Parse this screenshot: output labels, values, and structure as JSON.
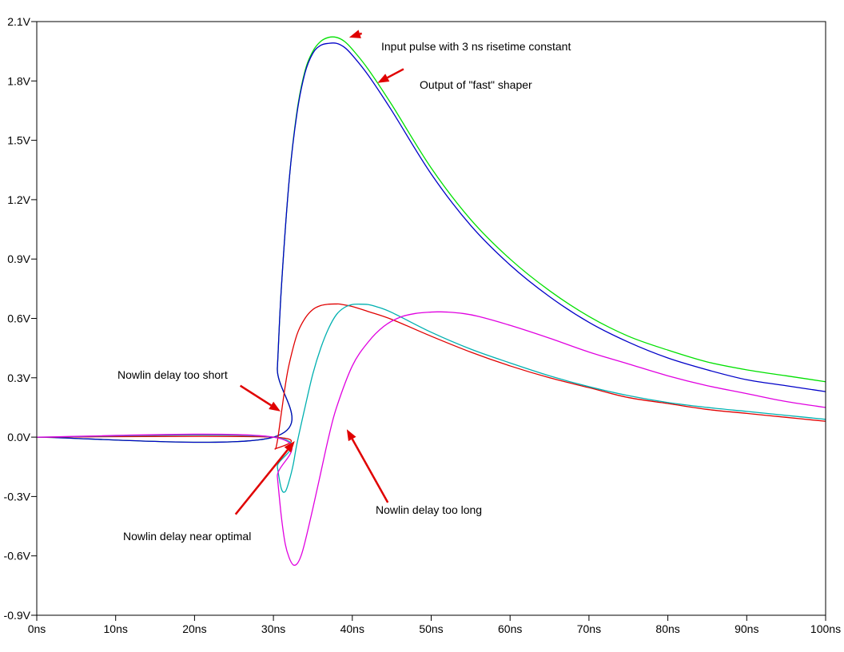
{
  "chart_data": {
    "type": "line",
    "title": "",
    "xlabel": "",
    "ylabel": "",
    "xlim": [
      0,
      100
    ],
    "ylim": [
      -0.9,
      2.1
    ],
    "grid": false,
    "x_ticks": [
      0,
      10,
      20,
      30,
      40,
      50,
      60,
      70,
      80,
      90,
      100
    ],
    "x_tick_labels": [
      "0ns",
      "10ns",
      "20ns",
      "30ns",
      "40ns",
      "50ns",
      "60ns",
      "70ns",
      "80ns",
      "90ns",
      "100ns"
    ],
    "y_ticks": [
      2.1,
      1.8,
      1.5,
      1.2,
      0.9,
      0.6,
      0.3,
      0.0,
      -0.3,
      -0.6,
      -0.9
    ],
    "y_tick_labels": [
      "2.1V",
      "1.8V",
      "1.5V",
      "1.2V",
      "0.9V",
      "0.6V",
      "0.3V",
      "0.0V",
      "-0.3V",
      "-0.6V",
      "-0.9V"
    ],
    "series": [
      {
        "color": "#00e000",
        "x": [
          0,
          30,
          30.5,
          31,
          32,
          33,
          34,
          35,
          36,
          37,
          38,
          39,
          40,
          42,
          45,
          50,
          55,
          60,
          65,
          70,
          75,
          80,
          85,
          90,
          95,
          100
        ],
        "y": [
          0,
          0,
          0.35,
          0.75,
          1.3,
          1.65,
          1.85,
          1.95,
          2.0,
          2.02,
          2.02,
          2.0,
          1.96,
          1.86,
          1.68,
          1.36,
          1.1,
          0.9,
          0.74,
          0.61,
          0.51,
          0.44,
          0.38,
          0.34,
          0.31,
          0.28
        ]
      },
      {
        "color": "#0000c8",
        "x": [
          0,
          30,
          30.5,
          31,
          32,
          33,
          34,
          35,
          36,
          37,
          38,
          39,
          40,
          42,
          45,
          50,
          55,
          60,
          65,
          70,
          75,
          80,
          85,
          90,
          95,
          100
        ],
        "y": [
          0,
          0,
          0.35,
          0.75,
          1.3,
          1.64,
          1.84,
          1.94,
          1.98,
          1.99,
          1.99,
          1.97,
          1.93,
          1.83,
          1.65,
          1.33,
          1.07,
          0.87,
          0.71,
          0.58,
          0.48,
          0.4,
          0.34,
          0.29,
          0.26,
          0.23
        ]
      },
      {
        "color": "#e00000",
        "x": [
          0,
          30,
          30.2,
          30.5,
          31,
          31.5,
          32,
          33,
          34,
          35,
          36,
          37,
          38,
          38.5,
          40,
          42,
          45,
          50,
          55,
          60,
          65,
          70,
          75,
          80,
          85,
          90,
          95,
          100
        ],
        "y": [
          0,
          0,
          -0.06,
          -0.02,
          0.12,
          0.26,
          0.37,
          0.52,
          0.6,
          0.645,
          0.665,
          0.672,
          0.673,
          0.672,
          0.66,
          0.635,
          0.595,
          0.51,
          0.43,
          0.36,
          0.3,
          0.25,
          0.2,
          0.17,
          0.14,
          0.12,
          0.1,
          0.08
        ]
      },
      {
        "color": "#00b0b0",
        "x": [
          0,
          30,
          30.5,
          31,
          31.5,
          32,
          32.5,
          33,
          34,
          35,
          36,
          37,
          38,
          39,
          40,
          41,
          42,
          43,
          45,
          50,
          55,
          60,
          65,
          70,
          75,
          80,
          85,
          90,
          95,
          100
        ],
        "y": [
          0,
          0,
          -0.15,
          -0.26,
          -0.275,
          -0.22,
          -0.14,
          -0.03,
          0.15,
          0.32,
          0.45,
          0.55,
          0.62,
          0.655,
          0.67,
          0.672,
          0.67,
          0.66,
          0.63,
          0.53,
          0.445,
          0.375,
          0.31,
          0.255,
          0.21,
          0.175,
          0.15,
          0.13,
          0.11,
          0.09
        ]
      },
      {
        "color": "#e000e0",
        "x": [
          0,
          30,
          30.5,
          31,
          31.5,
          32,
          32.5,
          33,
          33.5,
          34,
          35,
          36,
          37,
          38,
          40,
          42,
          44,
          46,
          48,
          50,
          51,
          52,
          54,
          56,
          60,
          65,
          70,
          75,
          80,
          85,
          90,
          95,
          100
        ],
        "y": [
          0,
          0,
          -0.2,
          -0.4,
          -0.54,
          -0.61,
          -0.645,
          -0.64,
          -0.6,
          -0.53,
          -0.36,
          -0.18,
          0.0,
          0.15,
          0.36,
          0.48,
          0.56,
          0.605,
          0.625,
          0.632,
          0.633,
          0.632,
          0.625,
          0.61,
          0.565,
          0.5,
          0.43,
          0.37,
          0.31,
          0.26,
          0.22,
          0.18,
          0.15
        ]
      }
    ],
    "annotations": [
      {
        "text": "Input pulse with 3 ns risetime constant",
        "arrow_from": [
          41.2,
          2.04
        ],
        "arrow_to": [
          39.6,
          2.02
        ]
      },
      {
        "text": "Output of \"fast\" shaper",
        "arrow_from": [
          46.5,
          1.86
        ],
        "arrow_to": [
          43.2,
          1.79
        ]
      },
      {
        "text": "Nowlin delay too short",
        "arrow_from": [
          25.8,
          0.26
        ],
        "arrow_to": [
          30.9,
          0.13
        ]
      },
      {
        "text": "Nowlin delay near optimal",
        "arrow_from": [
          25.2,
          -0.39
        ],
        "arrow_to": [
          32.7,
          -0.02
        ]
      },
      {
        "text": "Nowlin delay too long",
        "arrow_from": [
          44.5,
          -0.33
        ],
        "arrow_to": [
          39.3,
          0.04
        ]
      }
    ]
  }
}
